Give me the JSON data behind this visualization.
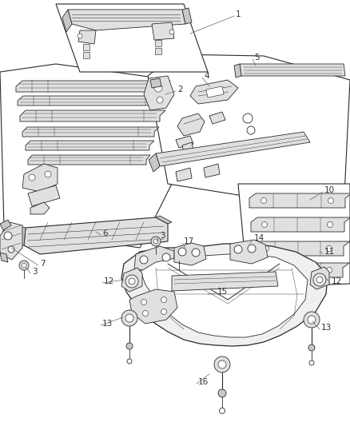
{
  "bg_color": "#ffffff",
  "fig_width": 4.38,
  "fig_height": 5.33,
  "dpi": 100,
  "lc": "#2a2a2a",
  "lw": 0.6,
  "fc_light": "#f0f0f0",
  "fc_part": "#e0e0e0",
  "fc_dark": "#c8c8c8",
  "alc": "#666666",
  "alw": 0.5,
  "label_fontsize": 7.5,
  "label_color": "#333333"
}
